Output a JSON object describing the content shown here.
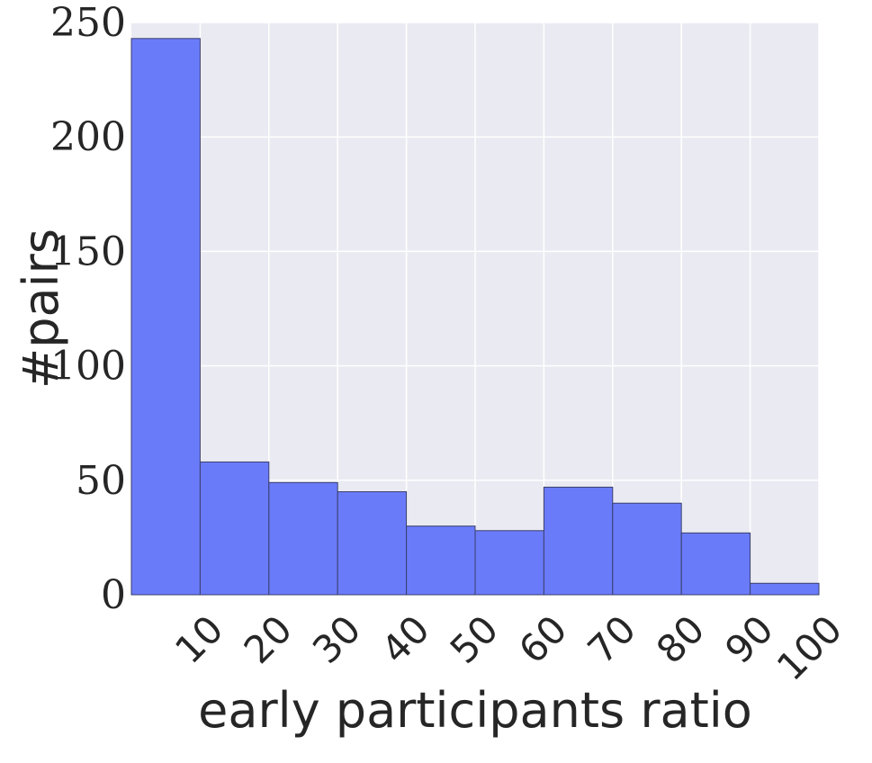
{
  "chart_data": {
    "type": "bar",
    "title": "",
    "xlabel": "early participants ratio",
    "ylabel": "#pairs",
    "bin_edges": [
      0,
      10,
      20,
      30,
      40,
      50,
      60,
      70,
      80,
      90,
      100
    ],
    "values": [
      243,
      58,
      49,
      45,
      30,
      28,
      47,
      40,
      27,
      5
    ],
    "xlim": [
      0,
      100
    ],
    "ylim": [
      0,
      250
    ],
    "xticks": [
      10,
      20,
      30,
      40,
      50,
      60,
      70,
      80,
      90,
      100
    ],
    "yticks": [
      0,
      50,
      100,
      150,
      200,
      250
    ],
    "grid": true,
    "colors": {
      "bar_fill": "#6a7bfa",
      "bar_edge": "#3a3f6a",
      "plot_background": "#eaeaf2",
      "grid": "#ffffff"
    }
  }
}
